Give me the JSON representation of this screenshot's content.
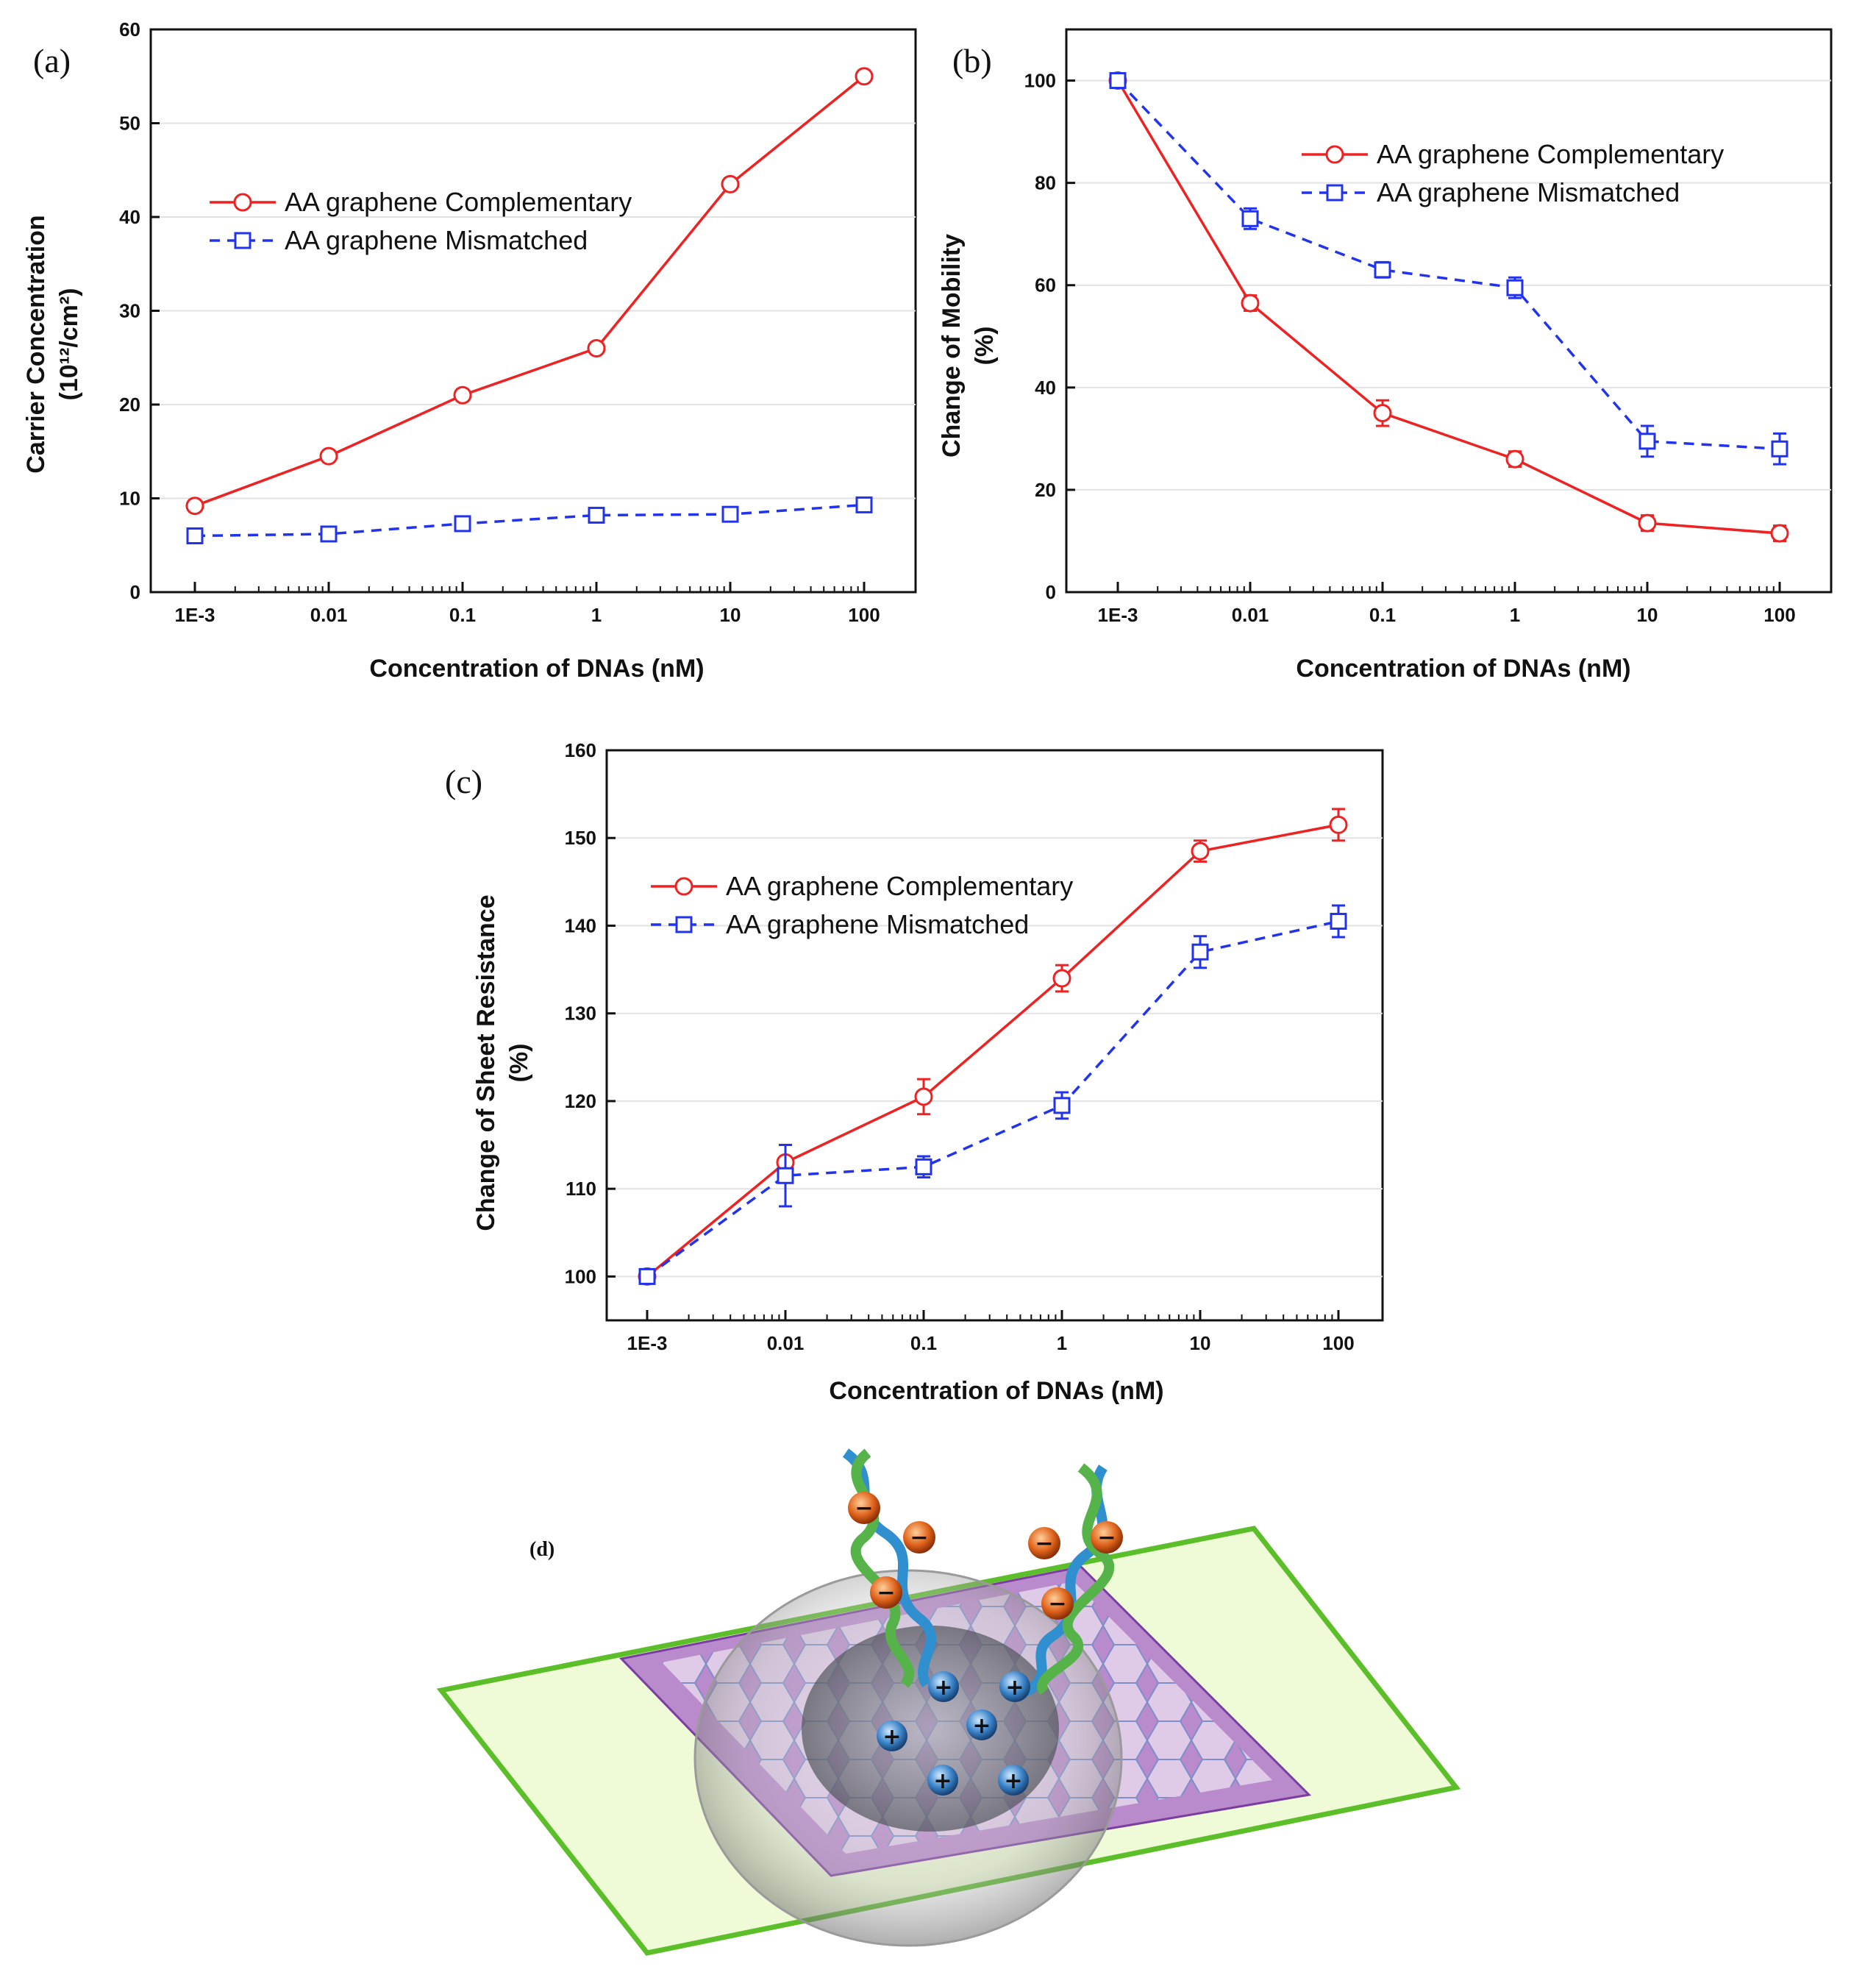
{
  "chart_data": [
    {
      "id": "a",
      "type": "line",
      "panel_label": "(a)",
      "xscale": "log",
      "x_tick_labels": [
        "1E-3",
        "0.01",
        "0.1",
        "1",
        "10",
        "100"
      ],
      "x": [
        0.001,
        0.01,
        0.1,
        1,
        10,
        100
      ],
      "xlabel": "Concentration of DNAs (nM)",
      "ylabel": "Carrier Concentration",
      "ylabel2": "(10¹²/cm²)",
      "ylim": [
        0,
        60
      ],
      "y_ticks": [
        0,
        10,
        20,
        30,
        40,
        50,
        60
      ],
      "legend_position": "upper-left",
      "series": [
        {
          "name": "AA graphene Complementary",
          "values": [
            9.2,
            14.5,
            21.0,
            26.0,
            43.5,
            55.0
          ],
          "errors": [
            0.6,
            0.6,
            0.6,
            0.6,
            0.6,
            0.6
          ],
          "marker": "circle",
          "style": "solid",
          "color": "#ee2222"
        },
        {
          "name": "AA graphene Mismatched",
          "values": [
            6.0,
            6.2,
            7.3,
            8.2,
            8.3,
            9.3
          ],
          "errors": [
            0.6,
            0.6,
            0.6,
            0.6,
            0.6,
            0.6
          ],
          "marker": "square",
          "style": "dashed",
          "color": "#2233ee"
        }
      ]
    },
    {
      "id": "b",
      "type": "line",
      "panel_label": "(b)",
      "xscale": "log",
      "x_tick_labels": [
        "1E-3",
        "0.01",
        "0.1",
        "1",
        "10",
        "100"
      ],
      "x": [
        0.001,
        0.01,
        0.1,
        1,
        10,
        100
      ],
      "xlabel": "Concentration of DNAs (nM)",
      "ylabel": "Change of Mobility",
      "ylabel2": "(%)",
      "ylim": [
        0,
        110
      ],
      "y_ticks": [
        0,
        20,
        40,
        60,
        80,
        100
      ],
      "legend_position": "upper-right",
      "series": [
        {
          "name": "AA graphene Complementary",
          "values": [
            100,
            56.5,
            35.0,
            26.0,
            13.5,
            11.5
          ],
          "errors": [
            1.0,
            1.5,
            2.5,
            1.5,
            1.5,
            1.5
          ],
          "marker": "circle",
          "style": "solid",
          "color": "#ee2222"
        },
        {
          "name": "AA graphene Mismatched",
          "values": [
            100,
            73.0,
            63.0,
            59.5,
            29.5,
            28.0
          ],
          "errors": [
            1.0,
            2.0,
            1.5,
            2.0,
            3.0,
            3.0
          ],
          "marker": "square",
          "style": "dashed",
          "color": "#2233ee"
        }
      ]
    },
    {
      "id": "c",
      "type": "line",
      "panel_label": "(c)",
      "xscale": "log",
      "x_tick_labels": [
        "1E-3",
        "0.01",
        "0.1",
        "1",
        "10",
        "100"
      ],
      "x": [
        0.001,
        0.01,
        0.1,
        1,
        10,
        100
      ],
      "xlabel": "Concentration of DNAs (nM)",
      "ylabel": "Change of Sheet Resistance",
      "ylabel2": "(%)",
      "ylim": [
        95,
        160
      ],
      "y_ticks": [
        100,
        110,
        120,
        130,
        140,
        150,
        160
      ],
      "legend_position": "upper-left",
      "series": [
        {
          "name": "AA graphene Complementary",
          "values": [
            100,
            113.0,
            120.5,
            134.0,
            148.5,
            151.5
          ],
          "errors": [
            0.5,
            2.0,
            2.0,
            1.5,
            1.2,
            1.8
          ],
          "marker": "circle",
          "style": "solid",
          "color": "#ee2222"
        },
        {
          "name": "AA graphene Mismatched",
          "values": [
            100,
            111.5,
            112.5,
            119.5,
            137.0,
            140.5
          ],
          "errors": [
            0.5,
            3.5,
            1.2,
            1.5,
            1.8,
            1.8
          ],
          "marker": "square",
          "style": "dashed",
          "color": "#2233ee"
        }
      ]
    }
  ],
  "illustration": {
    "panel_label": "(d)",
    "negative_symbol": "−",
    "positive_symbol": "+"
  }
}
